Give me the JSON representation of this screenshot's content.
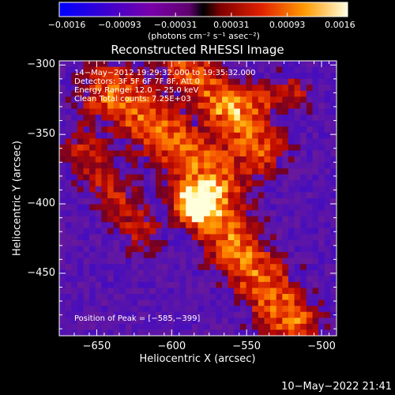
{
  "colorbar": {
    "tick_labels": [
      "-0.0016",
      "-0.00093",
      "-0.00031",
      "0.00031",
      "0.00093",
      "0.0016"
    ],
    "unit_label": "(photons cm⁻² s⁻¹ asec⁻²)",
    "range": [
      -0.0016,
      0.0016
    ]
  },
  "chart_data": {
    "type": "heatmap",
    "title": "Reconstructed RHESSI Image",
    "xlabel": "Heliocentric X (arcsec)",
    "ylabel": "Heliocentric Y (arcsec)",
    "xlim": [
      -675,
      -490
    ],
    "ylim": [
      -495,
      -297
    ],
    "x_ticks": [
      -650,
      -600,
      -550,
      -500
    ],
    "y_ticks": [
      -300,
      -350,
      -400,
      -450
    ],
    "x_tick_labels": [
      "−650",
      "−600",
      "−550",
      "−500"
    ],
    "y_tick_labels": [
      "−300",
      "−350",
      "−400",
      "−450"
    ],
    "peak": [
      -585,
      -399
    ],
    "colormap": "rainbow-to-hot",
    "annotations": [
      "14−May−2012 19:29:32.000 to 19:35:32.000",
      "Detectors: 3F 5F 6F 7F 8F, Att 0",
      "Energy Range: 12.0 − 25.0 keV",
      "Clean     Total counts: 7.25E+03"
    ],
    "peak_label": "Position of Peak = [−585,−399]"
  },
  "timestamp": "10−May−2022 21:41",
  "colors": {
    "background": "#000000",
    "foreground": "#ffffff",
    "low": "#5a1a8c",
    "high": "#ffff80"
  }
}
